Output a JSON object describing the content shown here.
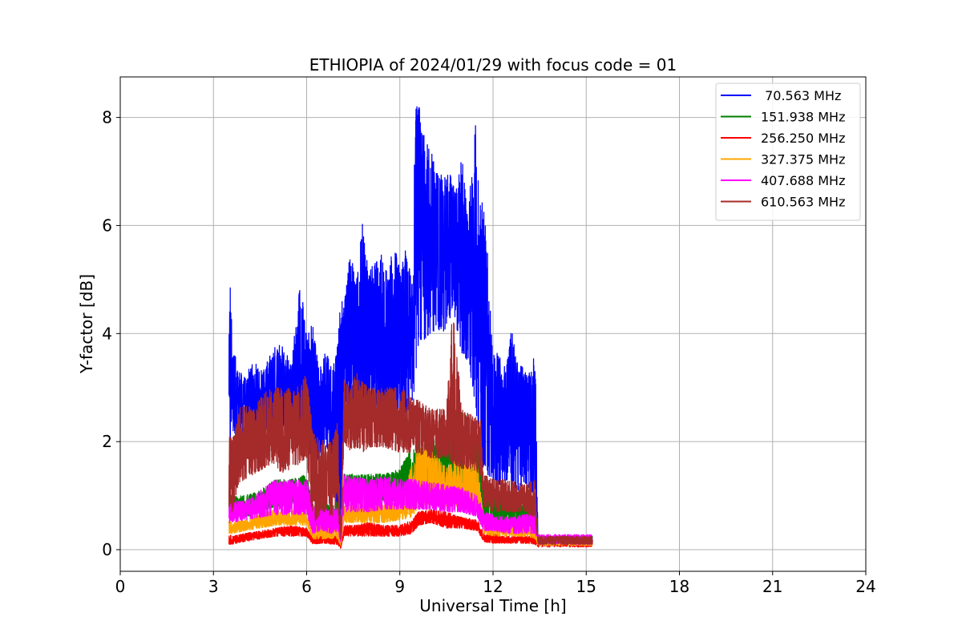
{
  "chart_data": {
    "type": "line",
    "title": "ETHIOPIA of 2024/01/29 with focus code = 01",
    "xlabel": "Universal Time [h]",
    "ylabel": "Y-factor [dB]",
    "xlim": [
      0,
      24
    ],
    "ylim": [
      -0.4,
      8.75
    ],
    "xticks": [
      0,
      3,
      6,
      9,
      12,
      15,
      18,
      21,
      24
    ],
    "yticks": [
      0,
      2,
      4,
      6,
      8
    ],
    "grid": true,
    "legend_position": "top-right",
    "series": [
      {
        "name": " 70.563 MHz",
        "color": "#0000ff",
        "x": [
          3.5,
          3.55,
          3.6,
          3.8,
          4.0,
          4.3,
          4.6,
          4.9,
          5.2,
          5.5,
          5.8,
          6.0,
          6.2,
          6.4,
          6.6,
          6.8,
          7.0,
          7.1,
          7.2,
          7.4,
          7.6,
          7.8,
          8.0,
          8.2,
          8.4,
          8.6,
          8.8,
          9.0,
          9.2,
          9.4,
          9.5,
          9.6,
          9.8,
          10.0,
          10.2,
          10.4,
          10.6,
          10.8,
          11.0,
          11.2,
          11.4,
          11.6,
          11.8,
          12.0,
          12.2,
          12.4,
          12.6,
          12.8,
          13.0,
          13.2,
          13.35,
          13.45,
          15.2
        ],
        "min": [
          1.8,
          2.0,
          2.2,
          2.1,
          2.0,
          2.1,
          2.2,
          2.3,
          2.2,
          2.3,
          2.3,
          2.0,
          1.5,
          1.7,
          2.0,
          1.6,
          0.6,
          0.3,
          2.6,
          2.6,
          2.5,
          2.6,
          2.4,
          2.5,
          2.3,
          2.4,
          2.5,
          2.3,
          2.4,
          2.6,
          3.2,
          3.8,
          3.9,
          4.0,
          4.1,
          4.0,
          4.3,
          4.2,
          3.6,
          3.5,
          2.8,
          1.6,
          1.4,
          1.3,
          1.2,
          1.3,
          1.2,
          1.1,
          1.2,
          1.1,
          1.0,
          0.1,
          0.1
        ],
        "max": [
          4.5,
          5.1,
          3.8,
          3.4,
          3.2,
          3.5,
          3.3,
          3.7,
          3.9,
          3.4,
          5.0,
          4.0,
          4.2,
          3.3,
          3.7,
          3.4,
          3.8,
          4.7,
          4.5,
          5.5,
          5.0,
          6.05,
          5.2,
          5.3,
          5.5,
          5.1,
          5.7,
          5.2,
          5.6,
          4.9,
          8.2,
          8.3,
          7.6,
          7.4,
          7.0,
          6.9,
          7.0,
          6.6,
          7.3,
          6.0,
          8.15,
          6.85,
          5.8,
          3.7,
          3.6,
          3.4,
          4.1,
          3.4,
          3.4,
          3.3,
          3.9,
          0.25,
          0.25
        ]
      },
      {
        "name": "151.938 MHz",
        "color": "#008000",
        "x": [
          3.5,
          3.6,
          4.0,
          4.5,
          5.0,
          5.5,
          6.0,
          6.2,
          6.5,
          6.8,
          7.0,
          7.1,
          7.2,
          7.5,
          8.0,
          8.5,
          9.0,
          9.5,
          10.0,
          10.5,
          11.0,
          11.5,
          11.7,
          12.0,
          12.5,
          13.0,
          13.35,
          13.45,
          15.2
        ],
        "min": [
          0.7,
          0.6,
          0.6,
          0.7,
          0.8,
          0.8,
          0.9,
          0.4,
          0.5,
          0.4,
          0.5,
          0.2,
          0.9,
          0.9,
          0.9,
          0.9,
          0.9,
          1.0,
          0.9,
          1.0,
          1.0,
          0.9,
          0.5,
          0.5,
          0.4,
          0.4,
          0.3,
          0.1,
          0.1
        ],
        "max": [
          1.1,
          1.0,
          1.0,
          1.1,
          1.3,
          1.3,
          1.4,
          0.9,
          0.9,
          0.8,
          0.9,
          0.5,
          1.4,
          1.4,
          1.4,
          1.4,
          1.5,
          2.0,
          2.0,
          2.2,
          2.6,
          2.2,
          1.3,
          1.1,
          1.0,
          0.9,
          0.8,
          0.25,
          0.25
        ]
      },
      {
        "name": "256.250 MHz",
        "color": "#ff0000",
        "x": [
          3.5,
          3.6,
          4.0,
          4.5,
          5.0,
          5.5,
          6.0,
          6.2,
          6.5,
          6.8,
          7.0,
          7.1,
          7.2,
          7.5,
          8.0,
          8.5,
          9.0,
          9.4,
          9.6,
          10.0,
          10.5,
          11.0,
          11.5,
          11.7,
          12.0,
          12.5,
          13.0,
          13.35,
          13.45,
          15.2
        ],
        "min": [
          0.1,
          0.1,
          0.15,
          0.2,
          0.25,
          0.25,
          0.25,
          0.1,
          0.12,
          0.1,
          0.1,
          0.02,
          0.25,
          0.25,
          0.25,
          0.25,
          0.25,
          0.3,
          0.45,
          0.5,
          0.4,
          0.4,
          0.35,
          0.15,
          0.12,
          0.12,
          0.12,
          0.1,
          0.05,
          0.05
        ],
        "max": [
          0.3,
          0.25,
          0.3,
          0.35,
          0.4,
          0.45,
          0.4,
          0.25,
          0.3,
          0.25,
          0.3,
          0.1,
          0.45,
          0.45,
          0.5,
          0.45,
          0.45,
          0.55,
          0.7,
          0.75,
          0.7,
          0.6,
          0.55,
          0.3,
          0.3,
          0.25,
          0.25,
          0.25,
          0.2,
          0.2
        ]
      },
      {
        "name": "327.375 MHz",
        "color": "#ffa500",
        "x": [
          3.5,
          3.6,
          4.0,
          4.5,
          5.0,
          5.5,
          6.0,
          6.2,
          6.5,
          6.8,
          7.0,
          7.1,
          7.2,
          7.5,
          8.0,
          8.5,
          9.0,
          9.4,
          9.6,
          10.0,
          10.5,
          11.0,
          11.5,
          11.7,
          12.0,
          12.5,
          13.0,
          13.35,
          13.45,
          15.2
        ],
        "min": [
          0.3,
          0.3,
          0.35,
          0.4,
          0.45,
          0.45,
          0.45,
          0.2,
          0.2,
          0.2,
          0.2,
          0.05,
          0.5,
          0.5,
          0.5,
          0.5,
          0.55,
          0.6,
          0.8,
          0.85,
          0.8,
          0.8,
          0.7,
          0.3,
          0.25,
          0.25,
          0.25,
          0.2,
          0.08,
          0.08
        ],
        "max": [
          0.55,
          0.5,
          0.55,
          0.65,
          0.75,
          0.75,
          0.7,
          0.45,
          0.45,
          0.45,
          0.45,
          0.15,
          0.8,
          0.85,
          0.85,
          0.85,
          0.9,
          1.6,
          1.9,
          1.9,
          1.5,
          1.8,
          1.6,
          0.6,
          0.5,
          0.5,
          0.5,
          0.45,
          0.22,
          0.22
        ]
      },
      {
        "name": "407.688 MHz",
        "color": "#ff00ff",
        "x": [
          3.5,
          3.6,
          4.0,
          4.5,
          5.0,
          5.5,
          6.0,
          6.2,
          6.5,
          6.8,
          7.0,
          7.1,
          7.2,
          7.5,
          8.0,
          8.5,
          9.0,
          9.5,
          10.0,
          10.5,
          11.0,
          11.5,
          11.7,
          12.0,
          12.5,
          13.0,
          13.35,
          13.45,
          15.2
        ],
        "min": [
          0.5,
          0.5,
          0.55,
          0.6,
          0.65,
          0.65,
          0.65,
          0.3,
          0.35,
          0.3,
          0.35,
          0.1,
          0.7,
          0.7,
          0.7,
          0.75,
          0.75,
          0.75,
          0.75,
          0.7,
          0.7,
          0.6,
          0.35,
          0.35,
          0.3,
          0.3,
          0.3,
          0.1,
          0.1
        ],
        "max": [
          0.95,
          0.9,
          0.9,
          1.1,
          1.3,
          1.3,
          1.3,
          0.8,
          0.8,
          0.75,
          0.8,
          0.3,
          1.4,
          1.35,
          1.3,
          1.35,
          1.3,
          1.3,
          1.25,
          1.2,
          1.15,
          1.0,
          0.7,
          0.65,
          0.6,
          0.65,
          0.7,
          0.28,
          0.28
        ]
      },
      {
        "name": "610.563 MHz",
        "color": "#a52a2a",
        "x": [
          3.5,
          3.6,
          3.8,
          4.0,
          4.3,
          4.6,
          4.9,
          5.2,
          5.5,
          5.8,
          6.0,
          6.2,
          6.4,
          6.6,
          6.8,
          7.0,
          7.1,
          7.2,
          7.4,
          7.6,
          7.8,
          8.0,
          8.5,
          9.0,
          9.5,
          10.0,
          10.5,
          10.7,
          11.0,
          11.3,
          11.6,
          11.7,
          12.0,
          12.5,
          13.0,
          13.35,
          13.45,
          15.2
        ],
        "min": [
          0.8,
          0.7,
          1.2,
          1.3,
          1.4,
          1.5,
          1.6,
          1.4,
          1.5,
          1.6,
          1.7,
          0.5,
          0.6,
          0.7,
          0.6,
          0.8,
          0.1,
          2.0,
          1.8,
          1.9,
          1.8,
          1.9,
          1.9,
          1.8,
          1.8,
          1.7,
          1.7,
          1.6,
          1.5,
          1.5,
          1.4,
          0.8,
          0.7,
          0.7,
          0.7,
          0.6,
          0.1,
          0.1
        ],
        "max": [
          2.2,
          2.0,
          2.6,
          2.7,
          2.6,
          2.9,
          3.0,
          3.0,
          3.0,
          3.1,
          3.3,
          2.2,
          2.1,
          2.0,
          2.0,
          2.4,
          0.5,
          3.2,
          3.0,
          3.3,
          3.1,
          3.0,
          3.0,
          3.0,
          2.8,
          2.6,
          2.6,
          4.5,
          2.6,
          2.5,
          2.4,
          1.4,
          1.3,
          1.3,
          1.2,
          1.3,
          0.25,
          0.25
        ]
      }
    ]
  }
}
